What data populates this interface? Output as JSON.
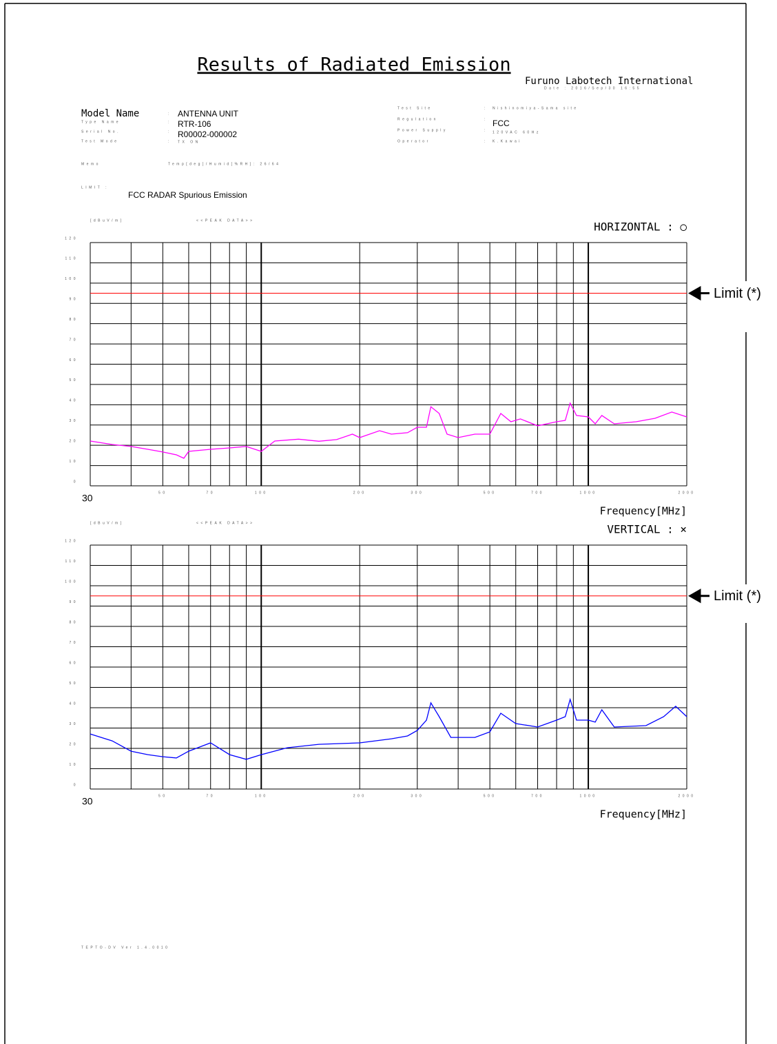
{
  "header": {
    "title": "Results of Radiated Emission",
    "company": "Furuno Labotech International",
    "date": "Date : 2016/Sep/30 16:55"
  },
  "sep": ":",
  "left_fields": [
    {
      "label": "Model Name",
      "value": "ANTENNA UNIT"
    },
    {
      "label": "Type Name",
      "value": "RTR-106"
    },
    {
      "label": "Serial No.",
      "value": "R00002-000002"
    },
    {
      "label": "Test Mode",
      "value": "TX ON"
    }
  ],
  "right_fields": [
    {
      "label": "Test Site",
      "value": "Nishinomiya-Sama site"
    },
    {
      "label": "Regulation",
      "value": "FCC"
    },
    {
      "label": "Power Supply",
      "value": "120VAC 60Hz"
    },
    {
      "label": "Operator",
      "value": "K.Kawai"
    }
  ],
  "memo": {
    "label": "Memo",
    "value": "Temp[deg]/Humid[%RH]: 26/64"
  },
  "limit": {
    "label": "LIMIT :",
    "value": "FCC RADAR Spurious Emission"
  },
  "footer": "TEPTO-DV Ver 1.4.0010",
  "chart_data": [
    {
      "type": "line",
      "y_label": "[dBuV/m]",
      "subtitle": "<<PEAK DATA>>",
      "x_label": "Frequency[MHz]",
      "xlog": true,
      "xlim": [
        30,
        2000
      ],
      "xticks": [
        30,
        50,
        70,
        100,
        200,
        300,
        500,
        700,
        1000,
        2000
      ],
      "xgrid": [
        40,
        60,
        80,
        90,
        400,
        600,
        800,
        900
      ],
      "ylim": [
        0,
        120
      ],
      "yticks": [
        0,
        10,
        20,
        30,
        40,
        50,
        60,
        70,
        80,
        90,
        100,
        110,
        120
      ],
      "grid": true,
      "limit": {
        "value": 95,
        "color": "#ff0000",
        "label": "Limit (*)"
      },
      "x": [
        30,
        35,
        40,
        45,
        50,
        55,
        58,
        60,
        70,
        80,
        90,
        100,
        110,
        130,
        150,
        170,
        190,
        200,
        230,
        250,
        280,
        300,
        320,
        330,
        350,
        370,
        400,
        450,
        500,
        540,
        580,
        620,
        700,
        800,
        850,
        880,
        920,
        1000,
        1050,
        1100,
        1200,
        1400,
        1600,
        1800,
        2000
      ],
      "series": [
        {
          "name": "HORIZONTAL : ○",
          "color": "#ff00ff",
          "values": [
            22.1,
            20.4,
            19.4,
            18,
            16.7,
            15.3,
            13.6,
            17,
            18,
            18.7,
            19.4,
            17,
            22.1,
            23,
            22,
            22.8,
            25.5,
            23.8,
            27.2,
            25.5,
            26.2,
            28.9,
            28.9,
            39,
            35.7,
            25.5,
            23.8,
            25.5,
            25.5,
            35.7,
            31.6,
            33,
            29.6,
            31.6,
            32.3,
            40.8,
            34.7,
            34,
            30.6,
            34.7,
            30.6,
            31.6,
            33.3,
            36.4,
            34
          ]
        }
      ]
    },
    {
      "type": "line",
      "y_label": "[dBuV/m]",
      "subtitle": "<<PEAK DATA>>",
      "x_label": "Frequency[MHz]",
      "xlog": true,
      "xlim": [
        30,
        2000
      ],
      "xticks": [
        30,
        50,
        70,
        100,
        200,
        300,
        500,
        700,
        1000,
        2000
      ],
      "xgrid": [
        40,
        60,
        80,
        90,
        400,
        600,
        800,
        900
      ],
      "ylim": [
        0,
        120
      ],
      "yticks": [
        0,
        10,
        20,
        30,
        40,
        50,
        60,
        70,
        80,
        90,
        100,
        110,
        120
      ],
      "grid": true,
      "limit": {
        "value": 95,
        "color": "#ff0000",
        "label": "Limit (*)"
      },
      "x": [
        30,
        35,
        40,
        45,
        50,
        55,
        60,
        70,
        80,
        90,
        100,
        120,
        150,
        200,
        250,
        280,
        300,
        320,
        330,
        350,
        380,
        450,
        500,
        540,
        600,
        700,
        800,
        850,
        880,
        920,
        1000,
        1050,
        1100,
        1200,
        1500,
        1700,
        1850,
        2000
      ],
      "series": [
        {
          "name": "VERTICAL : ×",
          "color": "#0000ff",
          "values": [
            27.1,
            23.7,
            18.6,
            16.9,
            15.9,
            15.3,
            18.6,
            22.7,
            16.9,
            14.6,
            16.9,
            20.3,
            22,
            22.7,
            24.7,
            26.1,
            28.8,
            33.9,
            42.4,
            35.6,
            25.4,
            25.4,
            28.1,
            37.3,
            32.2,
            30.5,
            33.9,
            35.6,
            44.1,
            33.9,
            33.9,
            32.9,
            39,
            30.5,
            31.2,
            35.6,
            40.7,
            35.6
          ]
        }
      ]
    }
  ]
}
